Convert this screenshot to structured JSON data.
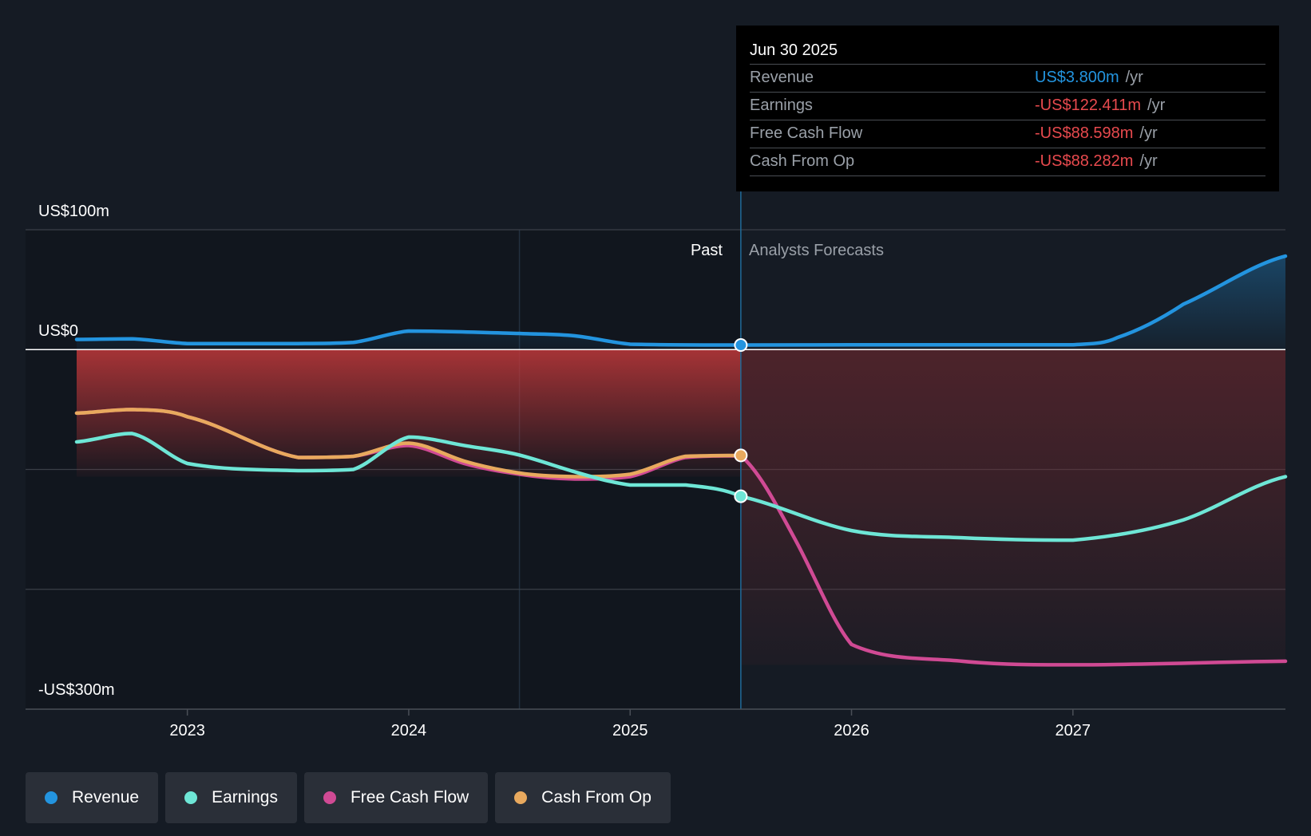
{
  "chart_data": {
    "type": "line",
    "title": "",
    "y_unit_labels": {
      "top": "US$100m",
      "zero": "US$0",
      "bottom": "-US$300m"
    },
    "ylim": [
      -300,
      100
    ],
    "xlim": [
      2022.5,
      2027.96
    ],
    "x_ticks": [
      {
        "value": 2023,
        "label": "2023"
      },
      {
        "value": 2024,
        "label": "2024"
      },
      {
        "value": 2025,
        "label": "2025"
      },
      {
        "value": 2026,
        "label": "2026"
      },
      {
        "value": 2027,
        "label": "2027"
      }
    ],
    "past_label": "Past",
    "forecast_label": "Analysts Forecasts",
    "past_shade_start": 2024.5,
    "divider_x": 2025.5,
    "series": [
      {
        "name": "Revenue",
        "key": "revenue",
        "color": "#2394df",
        "points": [
          [
            2022.5,
            8.5
          ],
          [
            2022.75,
            9
          ],
          [
            2023.0,
            5
          ],
          [
            2023.5,
            5
          ],
          [
            2023.75,
            6
          ],
          [
            2024.0,
            15.5
          ],
          [
            2024.5,
            13.5
          ],
          [
            2024.75,
            11.5
          ],
          [
            2025.0,
            4.5
          ],
          [
            2025.5,
            3.8
          ],
          [
            2026.0,
            4
          ],
          [
            2027.0,
            4
          ],
          [
            2027.2,
            10
          ],
          [
            2027.5,
            38
          ],
          [
            2027.96,
            78
          ]
        ]
      },
      {
        "name": "Earnings",
        "key": "earnings",
        "color": "#6ee6d6",
        "points": [
          [
            2022.5,
            -77
          ],
          [
            2022.75,
            -70
          ],
          [
            2023.0,
            -95
          ],
          [
            2023.5,
            -101
          ],
          [
            2023.75,
            -100
          ],
          [
            2024.0,
            -73
          ],
          [
            2024.25,
            -80
          ],
          [
            2024.5,
            -88
          ],
          [
            2024.75,
            -102
          ],
          [
            2025.0,
            -113
          ],
          [
            2025.25,
            -113
          ],
          [
            2025.5,
            -122.4
          ],
          [
            2026.0,
            -151
          ],
          [
            2026.5,
            -157
          ],
          [
            2027.0,
            -159
          ],
          [
            2027.5,
            -142
          ],
          [
            2027.96,
            -106
          ]
        ]
      },
      {
        "name": "Free Cash Flow",
        "key": "fcf",
        "color": "#d04a94",
        "points": [
          [
            2022.5,
            -53
          ],
          [
            2022.75,
            -50
          ],
          [
            2023.0,
            -56
          ],
          [
            2023.5,
            -90
          ],
          [
            2023.75,
            -89
          ],
          [
            2024.0,
            -80
          ],
          [
            2024.25,
            -95
          ],
          [
            2024.5,
            -104
          ],
          [
            2024.75,
            -108
          ],
          [
            2025.0,
            -106
          ],
          [
            2025.25,
            -90
          ],
          [
            2025.5,
            -88.6
          ],
          [
            2025.75,
            -160
          ],
          [
            2026.0,
            -246
          ],
          [
            2026.5,
            -260
          ],
          [
            2027.0,
            -263
          ],
          [
            2027.96,
            -260
          ]
        ]
      },
      {
        "name": "Cash From Op",
        "key": "cfo",
        "color": "#e8a95e",
        "points": [
          [
            2022.5,
            -53
          ],
          [
            2022.75,
            -50
          ],
          [
            2023.0,
            -56
          ],
          [
            2023.5,
            -90
          ],
          [
            2023.75,
            -89
          ],
          [
            2024.0,
            -78
          ],
          [
            2024.25,
            -93
          ],
          [
            2024.5,
            -103
          ],
          [
            2024.75,
            -106
          ],
          [
            2025.0,
            -104
          ],
          [
            2025.25,
            -89
          ],
          [
            2025.5,
            -88.3
          ]
        ]
      }
    ]
  },
  "tooltip": {
    "date": "Jun 30 2025",
    "rows": [
      {
        "label": "Revenue",
        "value": "US$3.800m",
        "unit": "/yr",
        "color": "#2394df"
      },
      {
        "label": "Earnings",
        "value": "-US$122.411m",
        "unit": "/yr",
        "color": "#e84a4e"
      },
      {
        "label": "Free Cash Flow",
        "value": "-US$88.598m",
        "unit": "/yr",
        "color": "#e84a4e"
      },
      {
        "label": "Cash From Op",
        "value": "-US$88.282m",
        "unit": "/yr",
        "color": "#e84a4e"
      }
    ]
  },
  "legend": [
    {
      "label": "Revenue",
      "color": "#2394df"
    },
    {
      "label": "Earnings",
      "color": "#6ee6d6"
    },
    {
      "label": "Free Cash Flow",
      "color": "#d04a94"
    },
    {
      "label": "Cash From Op",
      "color": "#e8a95e"
    }
  ]
}
